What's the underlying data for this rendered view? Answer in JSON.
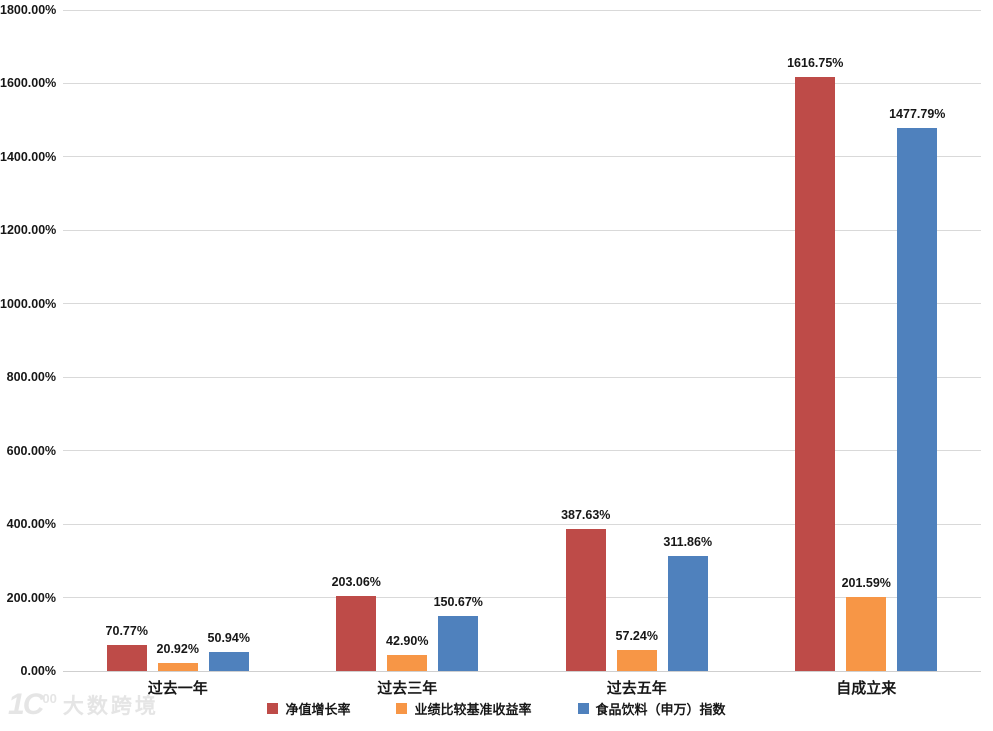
{
  "chart_data": {
    "type": "bar",
    "title": "",
    "xlabel": "",
    "ylabel": "",
    "categories": [
      "过去一年",
      "过去三年",
      "过去五年",
      "自成立来"
    ],
    "series": [
      {
        "name": "净值增长率",
        "color": "#be4b48",
        "values": [
          70.77,
          203.06,
          387.63,
          1616.75
        ],
        "labels": [
          "70.77%",
          "203.06%",
          "387.63%",
          "1616.75%"
        ]
      },
      {
        "name": "业绩比较基准收益率",
        "color": "#f79646",
        "values": [
          20.92,
          42.9,
          57.24,
          201.59
        ],
        "labels": [
          "20.92%",
          "42.90%",
          "57.24%",
          "201.59%"
        ]
      },
      {
        "name": "食品饮料（申万）指数",
        "color": "#4f81bd",
        "values": [
          50.94,
          150.67,
          311.86,
          1477.79
        ],
        "labels": [
          "50.94%",
          "150.67%",
          "311.86%",
          "1477.79%"
        ]
      }
    ],
    "ylim": [
      0,
      1800
    ],
    "ytick_step": 200,
    "ytick_labels": [
      "0.00%",
      "200.00%",
      "400.00%",
      "600.00%",
      "800.00%",
      "1000.00%",
      "1200.00%",
      "1400.00%",
      "1600.00%",
      "1800.00%"
    ],
    "grid": true,
    "gridline_color": "#d9d9d9",
    "label_color": "#171717",
    "legend_position": "bottom"
  },
  "watermark": {
    "logo_text_1": "1",
    "logo_text_c": "C",
    "logo_text_oo": "00",
    "text": "大数跨境"
  }
}
